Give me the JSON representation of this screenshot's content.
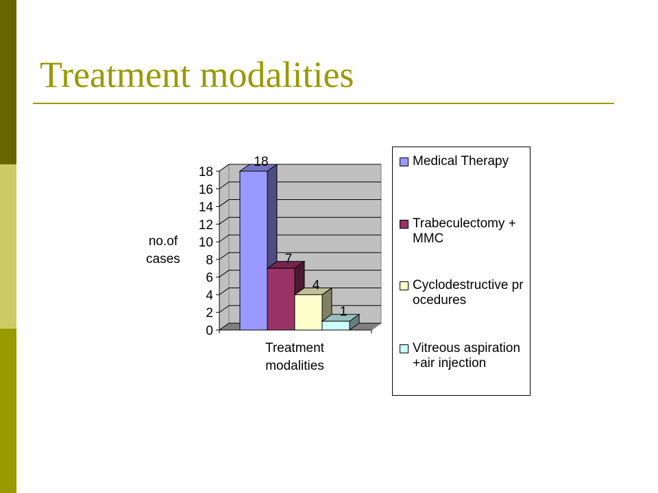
{
  "slide": {
    "title": "Treatment modalities",
    "accent_colors": [
      "#666600",
      "#cccc66",
      "#999900"
    ]
  },
  "chart_data": {
    "type": "bar",
    "categories": [
      "Treatment modalities"
    ],
    "series": [
      {
        "name": "Medical Therapy",
        "values": [
          18
        ],
        "color": "#9999ff"
      },
      {
        "name": "Trabeculectomy + MMC",
        "values": [
          7
        ],
        "color": "#993366"
      },
      {
        "name": "Cyclodestructive procedures",
        "values": [
          4
        ],
        "color": "#ffffcc"
      },
      {
        "name": "Vitreous aspiration +air injection",
        "values": [
          1
        ],
        "color": "#ccffff"
      }
    ],
    "xlabel": "Treatment modalities",
    "ylabel": "no.of cases",
    "ylim": [
      0,
      18
    ],
    "yticks": [
      0,
      2,
      4,
      6,
      8,
      10,
      12,
      14,
      16,
      18
    ],
    "data_labels": [
      "18",
      "7",
      "4",
      "1"
    ],
    "grid": true,
    "three_d": true,
    "legend_position": "right"
  }
}
